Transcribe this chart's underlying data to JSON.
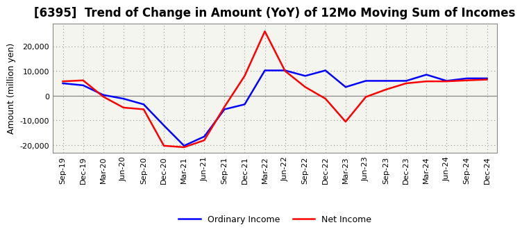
{
  "title": "[6395]  Trend of Change in Amount (YoY) of 12Mo Moving Sum of Incomes",
  "ylabel": "Amount (million yen)",
  "x_labels": [
    "Sep-19",
    "Dec-19",
    "Mar-20",
    "Jun-20",
    "Sep-20",
    "Dec-20",
    "Mar-21",
    "Jun-21",
    "Sep-21",
    "Dec-21",
    "Mar-22",
    "Jun-22",
    "Sep-22",
    "Dec-22",
    "Mar-23",
    "Jun-23",
    "Sep-23",
    "Dec-23",
    "Mar-24",
    "Jun-24",
    "Sep-24",
    "Dec-24"
  ],
  "ordinary_income": [
    5000,
    4200,
    300,
    -1200,
    -3500,
    -12000,
    -20200,
    -16500,
    -5500,
    -3500,
    10200,
    10200,
    8000,
    10200,
    3500,
    6000,
    6000,
    6000,
    8500,
    6000,
    7000,
    7000
  ],
  "net_income": [
    5800,
    6200,
    -400,
    -4800,
    -5500,
    -20200,
    -20800,
    -18000,
    -4500,
    8000,
    26000,
    10000,
    3500,
    -1200,
    -10500,
    -500,
    2500,
    5000,
    5800,
    5800,
    6200,
    6500
  ],
  "ordinary_color": "#0000ff",
  "net_color": "#ff0000",
  "ylim": [
    -23000,
    29000
  ],
  "yticks": [
    -20000,
    -10000,
    0,
    10000,
    20000
  ],
  "plot_bg_color": "#f5f5f0",
  "fig_bg_color": "#ffffff",
  "grid_color": "#999999",
  "zero_line_color": "#888888",
  "line_width": 1.8,
  "title_fontsize": 12,
  "ylabel_fontsize": 9,
  "tick_fontsize": 8,
  "legend_fontsize": 9
}
